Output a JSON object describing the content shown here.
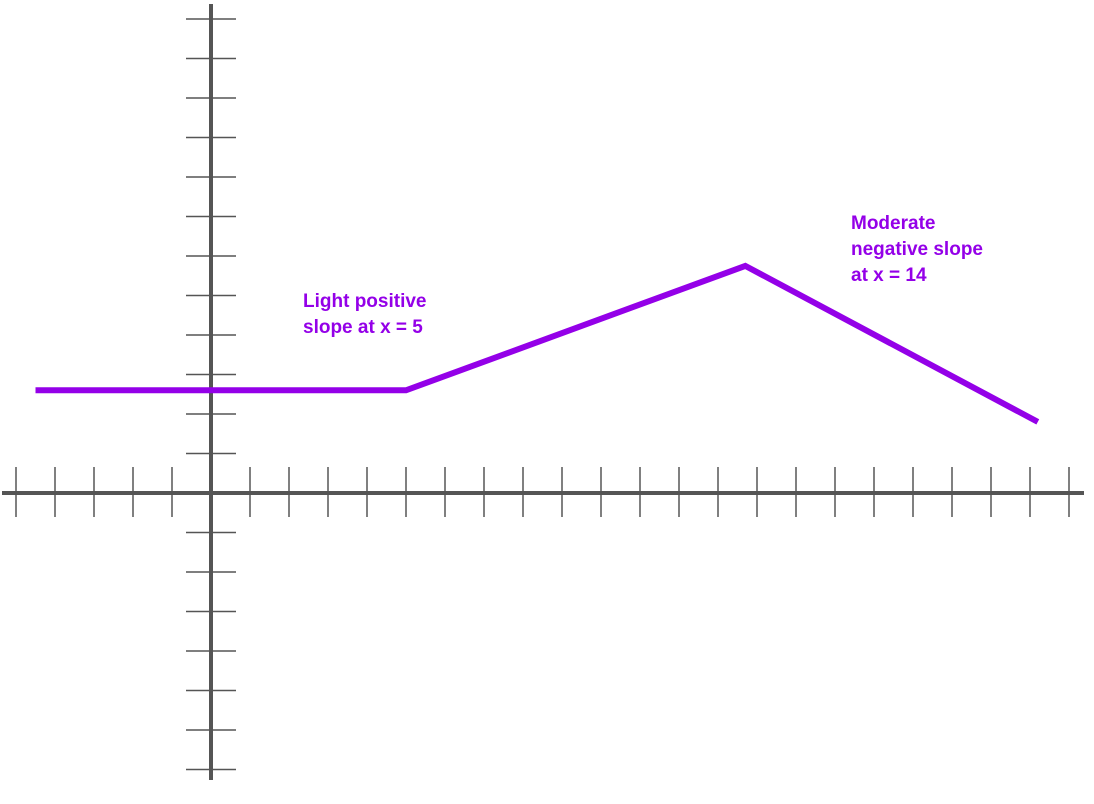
{
  "chart_data": {
    "type": "line",
    "x": [
      -4.5,
      5,
      13.7,
      21.2
    ],
    "values": [
      2.6,
      2.6,
      5.75,
      1.8
    ],
    "xlim": [
      -5,
      22
    ],
    "ylim": [
      -7,
      12.4
    ],
    "x_ticks_minor_count": 28,
    "grid": false,
    "line_color": "#9400e8",
    "axis_color": "#555555",
    "annotations": [
      {
        "id": "positive",
        "lines": [
          "Light positive",
          "slope at x = 5"
        ]
      },
      {
        "id": "negative",
        "lines": [
          "Moderate",
          "negative slope",
          "at x = 14"
        ]
      }
    ]
  }
}
